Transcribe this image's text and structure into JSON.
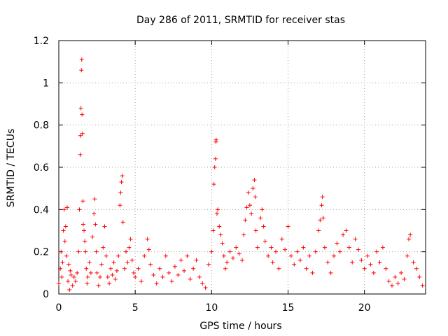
{
  "chart_data": {
    "type": "scatter",
    "title": "Day 286 of 2011, SRMTID for receiver stas",
    "xlabel": "GPS time / hours",
    "ylabel": "SRMTID / TECUs",
    "xlim": [
      0,
      24
    ],
    "ylim": [
      0,
      1.2
    ],
    "xticks": [
      0,
      5,
      10,
      15,
      20
    ],
    "xtick_labels": [
      "0",
      "5",
      "10",
      "15",
      "20"
    ],
    "yticks": [
      0,
      0.2,
      0.4,
      0.6,
      0.8,
      1.0,
      1.2
    ],
    "ytick_labels": [
      "0",
      "0.2",
      "0.4",
      "0.6",
      "0.8",
      "1",
      "1.2"
    ],
    "grid": true,
    "marker": "+",
    "series": [
      {
        "name": "SRMTID",
        "color": "#ff0000",
        "points": [
          [
            0.0,
            0.05
          ],
          [
            0.1,
            0.12
          ],
          [
            0.15,
            0.2
          ],
          [
            0.2,
            0.08
          ],
          [
            0.25,
            0.15
          ],
          [
            0.3,
            0.3
          ],
          [
            0.35,
            0.4
          ],
          [
            0.4,
            0.25
          ],
          [
            0.45,
            0.32
          ],
          [
            0.5,
            0.18
          ],
          [
            0.55,
            0.41
          ],
          [
            0.6,
            0.06
          ],
          [
            0.65,
            0.14
          ],
          [
            0.7,
            0.02
          ],
          [
            0.75,
            0.11
          ],
          [
            0.8,
            0.09
          ],
          [
            0.9,
            0.04
          ],
          [
            1.0,
            0.08
          ],
          [
            1.1,
            0.06
          ],
          [
            1.2,
            0.1
          ],
          [
            1.3,
            0.2
          ],
          [
            1.35,
            0.4
          ],
          [
            1.4,
            0.66
          ],
          [
            1.42,
            0.75
          ],
          [
            1.45,
            0.88
          ],
          [
            1.48,
            1.06
          ],
          [
            1.5,
            1.11
          ],
          [
            1.52,
            0.85
          ],
          [
            1.55,
            0.76
          ],
          [
            1.58,
            0.44
          ],
          [
            1.6,
            0.33
          ],
          [
            1.65,
            0.3
          ],
          [
            1.7,
            0.25
          ],
          [
            1.75,
            0.2
          ],
          [
            1.8,
            0.12
          ],
          [
            1.85,
            0.05
          ],
          [
            1.9,
            0.08
          ],
          [
            2.0,
            0.15
          ],
          [
            2.1,
            0.1
          ],
          [
            2.2,
            0.27
          ],
          [
            2.3,
            0.38
          ],
          [
            2.35,
            0.45
          ],
          [
            2.4,
            0.33
          ],
          [
            2.45,
            0.2
          ],
          [
            2.5,
            0.1
          ],
          [
            2.6,
            0.04
          ],
          [
            2.7,
            0.08
          ],
          [
            2.8,
            0.14
          ],
          [
            2.9,
            0.22
          ],
          [
            3.0,
            0.32
          ],
          [
            3.1,
            0.18
          ],
          [
            3.2,
            0.08
          ],
          [
            3.3,
            0.05
          ],
          [
            3.4,
            0.12
          ],
          [
            3.5,
            0.09
          ],
          [
            3.6,
            0.15
          ],
          [
            3.7,
            0.07
          ],
          [
            3.8,
            0.11
          ],
          [
            3.9,
            0.18
          ],
          [
            4.0,
            0.42
          ],
          [
            4.05,
            0.48
          ],
          [
            4.1,
            0.53
          ],
          [
            4.15,
            0.56
          ],
          [
            4.2,
            0.34
          ],
          [
            4.3,
            0.12
          ],
          [
            4.4,
            0.2
          ],
          [
            4.5,
            0.15
          ],
          [
            4.6,
            0.22
          ],
          [
            4.7,
            0.26
          ],
          [
            4.8,
            0.16
          ],
          [
            4.9,
            0.1
          ],
          [
            5.0,
            0.08
          ],
          [
            5.2,
            0.12
          ],
          [
            5.4,
            0.06
          ],
          [
            5.6,
            0.18
          ],
          [
            5.8,
            0.26
          ],
          [
            5.9,
            0.21
          ],
          [
            6.0,
            0.14
          ],
          [
            6.2,
            0.09
          ],
          [
            6.4,
            0.05
          ],
          [
            6.6,
            0.12
          ],
          [
            6.8,
            0.08
          ],
          [
            7.0,
            0.18
          ],
          [
            7.2,
            0.1
          ],
          [
            7.4,
            0.06
          ],
          [
            7.6,
            0.13
          ],
          [
            7.8,
            0.09
          ],
          [
            8.0,
            0.16
          ],
          [
            8.2,
            0.11
          ],
          [
            8.4,
            0.18
          ],
          [
            8.6,
            0.07
          ],
          [
            8.8,
            0.12
          ],
          [
            9.0,
            0.16
          ],
          [
            9.2,
            0.08
          ],
          [
            9.4,
            0.05
          ],
          [
            9.6,
            0.03
          ],
          [
            9.8,
            0.14
          ],
          [
            10.0,
            0.2
          ],
          [
            10.1,
            0.3
          ],
          [
            10.15,
            0.52
          ],
          [
            10.2,
            0.6
          ],
          [
            10.25,
            0.64
          ],
          [
            10.28,
            0.72
          ],
          [
            10.3,
            0.73
          ],
          [
            10.35,
            0.38
          ],
          [
            10.4,
            0.4
          ],
          [
            10.5,
            0.32
          ],
          [
            10.6,
            0.28
          ],
          [
            10.7,
            0.24
          ],
          [
            10.8,
            0.18
          ],
          [
            10.9,
            0.12
          ],
          [
            11.0,
            0.15
          ],
          [
            11.2,
            0.2
          ],
          [
            11.4,
            0.17
          ],
          [
            11.6,
            0.22
          ],
          [
            11.8,
            0.19
          ],
          [
            12.0,
            0.16
          ],
          [
            12.1,
            0.28
          ],
          [
            12.2,
            0.35
          ],
          [
            12.3,
            0.41
          ],
          [
            12.4,
            0.48
          ],
          [
            12.5,
            0.42
          ],
          [
            12.6,
            0.38
          ],
          [
            12.7,
            0.5
          ],
          [
            12.8,
            0.54
          ],
          [
            12.85,
            0.46
          ],
          [
            12.9,
            0.3
          ],
          [
            13.0,
            0.22
          ],
          [
            13.2,
            0.36
          ],
          [
            13.3,
            0.4
          ],
          [
            13.4,
            0.32
          ],
          [
            13.5,
            0.25
          ],
          [
            13.7,
            0.18
          ],
          [
            13.9,
            0.22
          ],
          [
            14.0,
            0.15
          ],
          [
            14.2,
            0.2
          ],
          [
            14.4,
            0.12
          ],
          [
            14.6,
            0.26
          ],
          [
            14.8,
            0.21
          ],
          [
            15.0,
            0.32
          ],
          [
            15.2,
            0.18
          ],
          [
            15.4,
            0.14
          ],
          [
            15.6,
            0.2
          ],
          [
            15.8,
            0.16
          ],
          [
            16.0,
            0.22
          ],
          [
            16.2,
            0.12
          ],
          [
            16.4,
            0.18
          ],
          [
            16.6,
            0.1
          ],
          [
            16.8,
            0.2
          ],
          [
            17.0,
            0.3
          ],
          [
            17.1,
            0.35
          ],
          [
            17.2,
            0.42
          ],
          [
            17.25,
            0.46
          ],
          [
            17.3,
            0.36
          ],
          [
            17.4,
            0.22
          ],
          [
            17.6,
            0.15
          ],
          [
            17.8,
            0.1
          ],
          [
            18.0,
            0.18
          ],
          [
            18.2,
            0.24
          ],
          [
            18.4,
            0.2
          ],
          [
            18.6,
            0.28
          ],
          [
            18.8,
            0.3
          ],
          [
            19.0,
            0.22
          ],
          [
            19.2,
            0.15
          ],
          [
            19.4,
            0.26
          ],
          [
            19.6,
            0.21
          ],
          [
            19.8,
            0.16
          ],
          [
            20.0,
            0.12
          ],
          [
            20.2,
            0.18
          ],
          [
            20.4,
            0.14
          ],
          [
            20.6,
            0.1
          ],
          [
            20.8,
            0.2
          ],
          [
            21.0,
            0.15
          ],
          [
            21.2,
            0.22
          ],
          [
            21.4,
            0.12
          ],
          [
            21.6,
            0.06
          ],
          [
            21.8,
            0.04
          ],
          [
            22.0,
            0.08
          ],
          [
            22.2,
            0.05
          ],
          [
            22.4,
            0.1
          ],
          [
            22.6,
            0.07
          ],
          [
            22.8,
            0.18
          ],
          [
            22.9,
            0.26
          ],
          [
            23.0,
            0.28
          ],
          [
            23.2,
            0.15
          ],
          [
            23.4,
            0.12
          ],
          [
            23.6,
            0.08
          ],
          [
            23.8,
            0.04
          ]
        ]
      }
    ]
  }
}
